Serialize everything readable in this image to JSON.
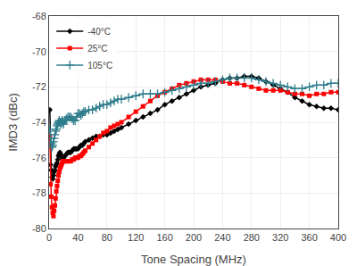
{
  "chart_data": {
    "type": "line",
    "xlabel": "Tone Spacing (MHz)",
    "ylabel": "IMD3 (dBc)",
    "xlim": [
      0,
      400
    ],
    "ylim": [
      -80,
      -68
    ],
    "xticks": [
      0,
      40,
      80,
      120,
      160,
      200,
      240,
      280,
      320,
      360,
      400
    ],
    "yticks": [
      -80,
      -78,
      -76,
      -74,
      -72,
      -70,
      -68
    ],
    "grid": true,
    "legend": "upper left",
    "x": [
      1,
      2,
      3,
      4,
      5,
      6,
      7,
      8,
      9,
      10,
      11,
      12,
      13,
      14,
      15,
      16,
      17,
      18,
      19,
      20,
      22,
      24,
      26,
      28,
      30,
      32,
      34,
      36,
      38,
      40,
      42,
      44,
      46,
      48,
      50,
      55,
      60,
      65,
      70,
      75,
      80,
      85,
      90,
      95,
      100,
      110,
      120,
      130,
      140,
      150,
      160,
      170,
      180,
      190,
      200,
      210,
      220,
      230,
      240,
      250,
      260,
      270,
      280,
      290,
      300,
      310,
      320,
      330,
      340,
      350,
      360,
      370,
      380,
      390,
      400
    ],
    "series": [
      {
        "name": "-40°C",
        "color": "#000000",
        "marker": "diamond",
        "values": [
          -73.3,
          -76.4,
          -76.7,
          -77.1,
          -77.2,
          -77.0,
          -76.8,
          -76.7,
          -76.5,
          -76.4,
          -76.3,
          -76.1,
          -75.9,
          -75.8,
          -75.7,
          -75.8,
          -75.9,
          -76.0,
          -76.1,
          -76.0,
          -75.9,
          -75.8,
          -75.7,
          -75.7,
          -75.7,
          -75.6,
          -75.5,
          -75.5,
          -75.5,
          -75.5,
          -75.4,
          -75.3,
          -75.3,
          -75.2,
          -75.1,
          -75.0,
          -74.9,
          -74.8,
          -74.8,
          -74.7,
          -74.7,
          -74.6,
          -74.5,
          -74.4,
          -74.3,
          -74.1,
          -73.9,
          -73.7,
          -73.5,
          -73.3,
          -73.0,
          -72.8,
          -72.6,
          -72.4,
          -72.2,
          -72.0,
          -71.9,
          -71.8,
          -71.6,
          -71.5,
          -71.5,
          -71.4,
          -71.4,
          -71.5,
          -71.7,
          -71.9,
          -72.1,
          -72.3,
          -72.6,
          -72.8,
          -73.0,
          -73.1,
          -73.2,
          -73.2,
          -73.3
        ]
      },
      {
        "name": "25°C",
        "color": "#ff0000",
        "marker": "square",
        "values": [
          -74.8,
          -77.5,
          -78.2,
          -78.8,
          -79.1,
          -79.3,
          -79.0,
          -78.7,
          -78.3,
          -77.9,
          -77.6,
          -77.3,
          -77.0,
          -76.8,
          -76.6,
          -76.5,
          -76.4,
          -76.3,
          -76.2,
          -76.2,
          -76.2,
          -76.2,
          -76.2,
          -76.2,
          -76.2,
          -76.1,
          -76.1,
          -76.0,
          -76.0,
          -76.0,
          -75.9,
          -75.9,
          -75.8,
          -75.7,
          -75.6,
          -75.4,
          -75.2,
          -75.0,
          -74.8,
          -74.6,
          -74.5,
          -74.3,
          -74.2,
          -74.1,
          -74.0,
          -73.7,
          -73.4,
          -73.1,
          -72.8,
          -72.5,
          -72.3,
          -72.1,
          -71.9,
          -71.8,
          -71.7,
          -71.6,
          -71.6,
          -71.6,
          -71.7,
          -71.8,
          -71.8,
          -71.9,
          -72.0,
          -72.1,
          -72.2,
          -72.2,
          -72.2,
          -72.3,
          -72.4,
          -72.4,
          -72.5,
          -72.4,
          -72.4,
          -72.3,
          -72.3
        ]
      },
      {
        "name": "105°C",
        "color": "#2e7d8c",
        "marker": "plus",
        "values": [
          -74.4,
          -74.9,
          -75.2,
          -75.4,
          -75.3,
          -75.1,
          -74.9,
          -74.7,
          -74.5,
          -74.4,
          -74.2,
          -74.1,
          -74.0,
          -73.9,
          -74.0,
          -74.1,
          -74.0,
          -73.9,
          -74.0,
          -74.1,
          -73.9,
          -73.8,
          -73.7,
          -73.7,
          -73.7,
          -73.8,
          -73.9,
          -73.9,
          -73.7,
          -73.5,
          -73.5,
          -73.6,
          -73.5,
          -73.4,
          -73.4,
          -73.3,
          -73.3,
          -73.2,
          -73.1,
          -73.0,
          -73.0,
          -72.9,
          -72.8,
          -72.7,
          -72.7,
          -72.6,
          -72.5,
          -72.4,
          -72.4,
          -72.4,
          -72.3,
          -72.2,
          -72.1,
          -72.0,
          -71.9,
          -71.8,
          -71.8,
          -71.7,
          -71.6,
          -71.5,
          -71.5,
          -71.5,
          -71.5,
          -71.6,
          -71.7,
          -71.8,
          -71.9,
          -72.0,
          -72.1,
          -72.1,
          -72.0,
          -71.9,
          -71.9,
          -71.8,
          -71.8
        ]
      }
    ]
  }
}
